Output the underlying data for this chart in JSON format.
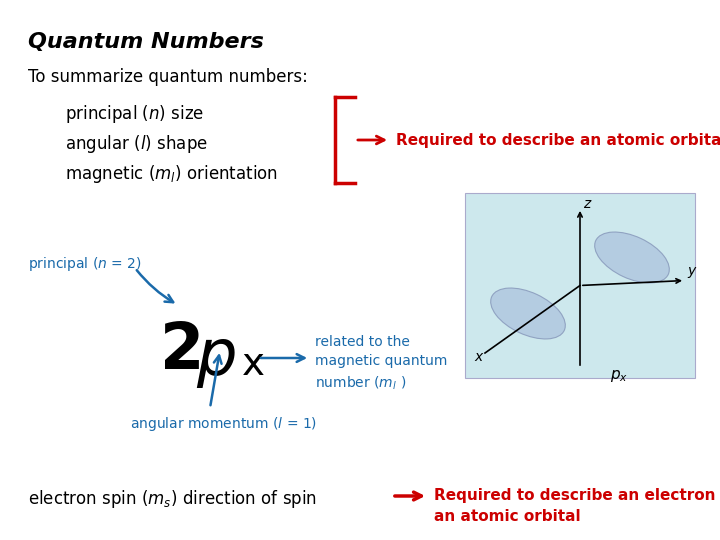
{
  "title": "Quantum Numbers",
  "bg_color": "#ffffff",
  "title_color": "#000000",
  "title_fontsize": 16,
  "subtitle": "To summarize quantum numbers:",
  "subtitle_color": "#000000",
  "subtitle_fontsize": 12,
  "item_fontsize": 12,
  "item_color": "#000000",
  "bracket_color": "#cc0000",
  "required_text": "Required to describe an atomic orbital",
  "required_color": "#cc0000",
  "required_fontsize": 11,
  "principal_color": "#1a6aaa",
  "angular_color": "#1a6aaa",
  "related_color": "#1a6aaa",
  "orbital_box_color": "#cde8ed",
  "electron_required_color": "#cc0000",
  "electron_required_fontsize": 11,
  "twop_color": "#000000"
}
